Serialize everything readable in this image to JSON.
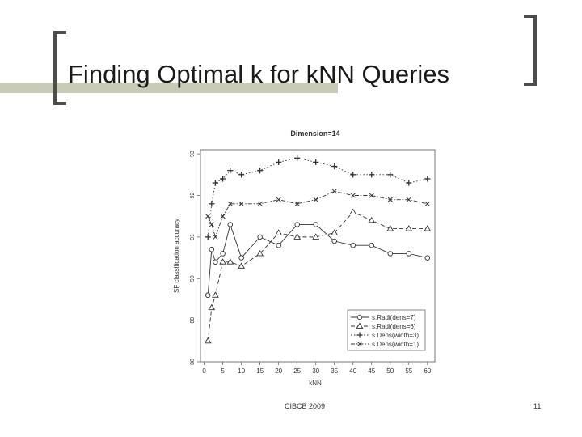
{
  "slide": {
    "title": "Finding Optimal k for kNN Queries",
    "footer": "CIBCB 2009",
    "page_number": "11"
  },
  "colors": {
    "title_band": "#c8ccb6",
    "bracket": "#4d4d4d",
    "series": "#333333"
  },
  "chart_data": {
    "type": "line",
    "title": "Dimension=14",
    "xlabel": "kNN",
    "ylabel": "SF classification accuracy",
    "xlim": [
      -1,
      62
    ],
    "ylim": [
      88,
      93.1
    ],
    "xticks": [
      "0",
      "5",
      "10",
      "15",
      "20",
      "25",
      "30",
      "35",
      "40",
      "45",
      "50",
      "55",
      "60"
    ],
    "yticks": [
      "88",
      "89",
      "90",
      "91",
      "92",
      "93"
    ],
    "legend_position": "bottom-right",
    "series": [
      {
        "name": "s.Radi(dens=7)",
        "marker": "circle",
        "line": "solid",
        "x": [
          1,
          2,
          3,
          5,
          7,
          10,
          15,
          20,
          25,
          30,
          35,
          40,
          45,
          50,
          55,
          60
        ],
        "y": [
          89.6,
          90.7,
          90.4,
          90.6,
          91.3,
          90.5,
          91.0,
          90.8,
          91.3,
          91.3,
          90.9,
          90.8,
          90.8,
          90.6,
          90.6,
          90.5
        ]
      },
      {
        "name": "s.Radi(dens=6)",
        "marker": "triangle",
        "line": "dashed",
        "x": [
          1,
          2,
          3,
          5,
          7,
          10,
          15,
          20,
          25,
          30,
          35,
          40,
          45,
          50,
          55,
          60
        ],
        "y": [
          88.5,
          89.3,
          89.6,
          90.4,
          90.4,
          90.3,
          90.6,
          91.1,
          91.0,
          91.0,
          91.1,
          91.6,
          91.4,
          91.2,
          91.2,
          91.2
        ]
      },
      {
        "name": "s.Dens(width=3)",
        "marker": "plus",
        "line": "dotted",
        "x": [
          1,
          2,
          3,
          5,
          7,
          10,
          15,
          20,
          25,
          30,
          35,
          40,
          45,
          50,
          55,
          60
        ],
        "y": [
          91.0,
          91.8,
          92.3,
          92.4,
          92.6,
          92.5,
          92.6,
          92.8,
          92.9,
          92.8,
          92.7,
          92.5,
          92.5,
          92.5,
          92.3,
          92.4
        ]
      },
      {
        "name": "s.Dens(width=1)",
        "marker": "cross",
        "line": "dotdash",
        "x": [
          1,
          2,
          3,
          5,
          7,
          10,
          15,
          20,
          25,
          30,
          35,
          40,
          45,
          50,
          55,
          60
        ],
        "y": [
          91.5,
          91.3,
          91.0,
          91.5,
          91.8,
          91.8,
          91.8,
          91.9,
          91.8,
          91.9,
          92.1,
          92.0,
          92.0,
          91.9,
          91.9,
          91.8
        ]
      }
    ]
  }
}
